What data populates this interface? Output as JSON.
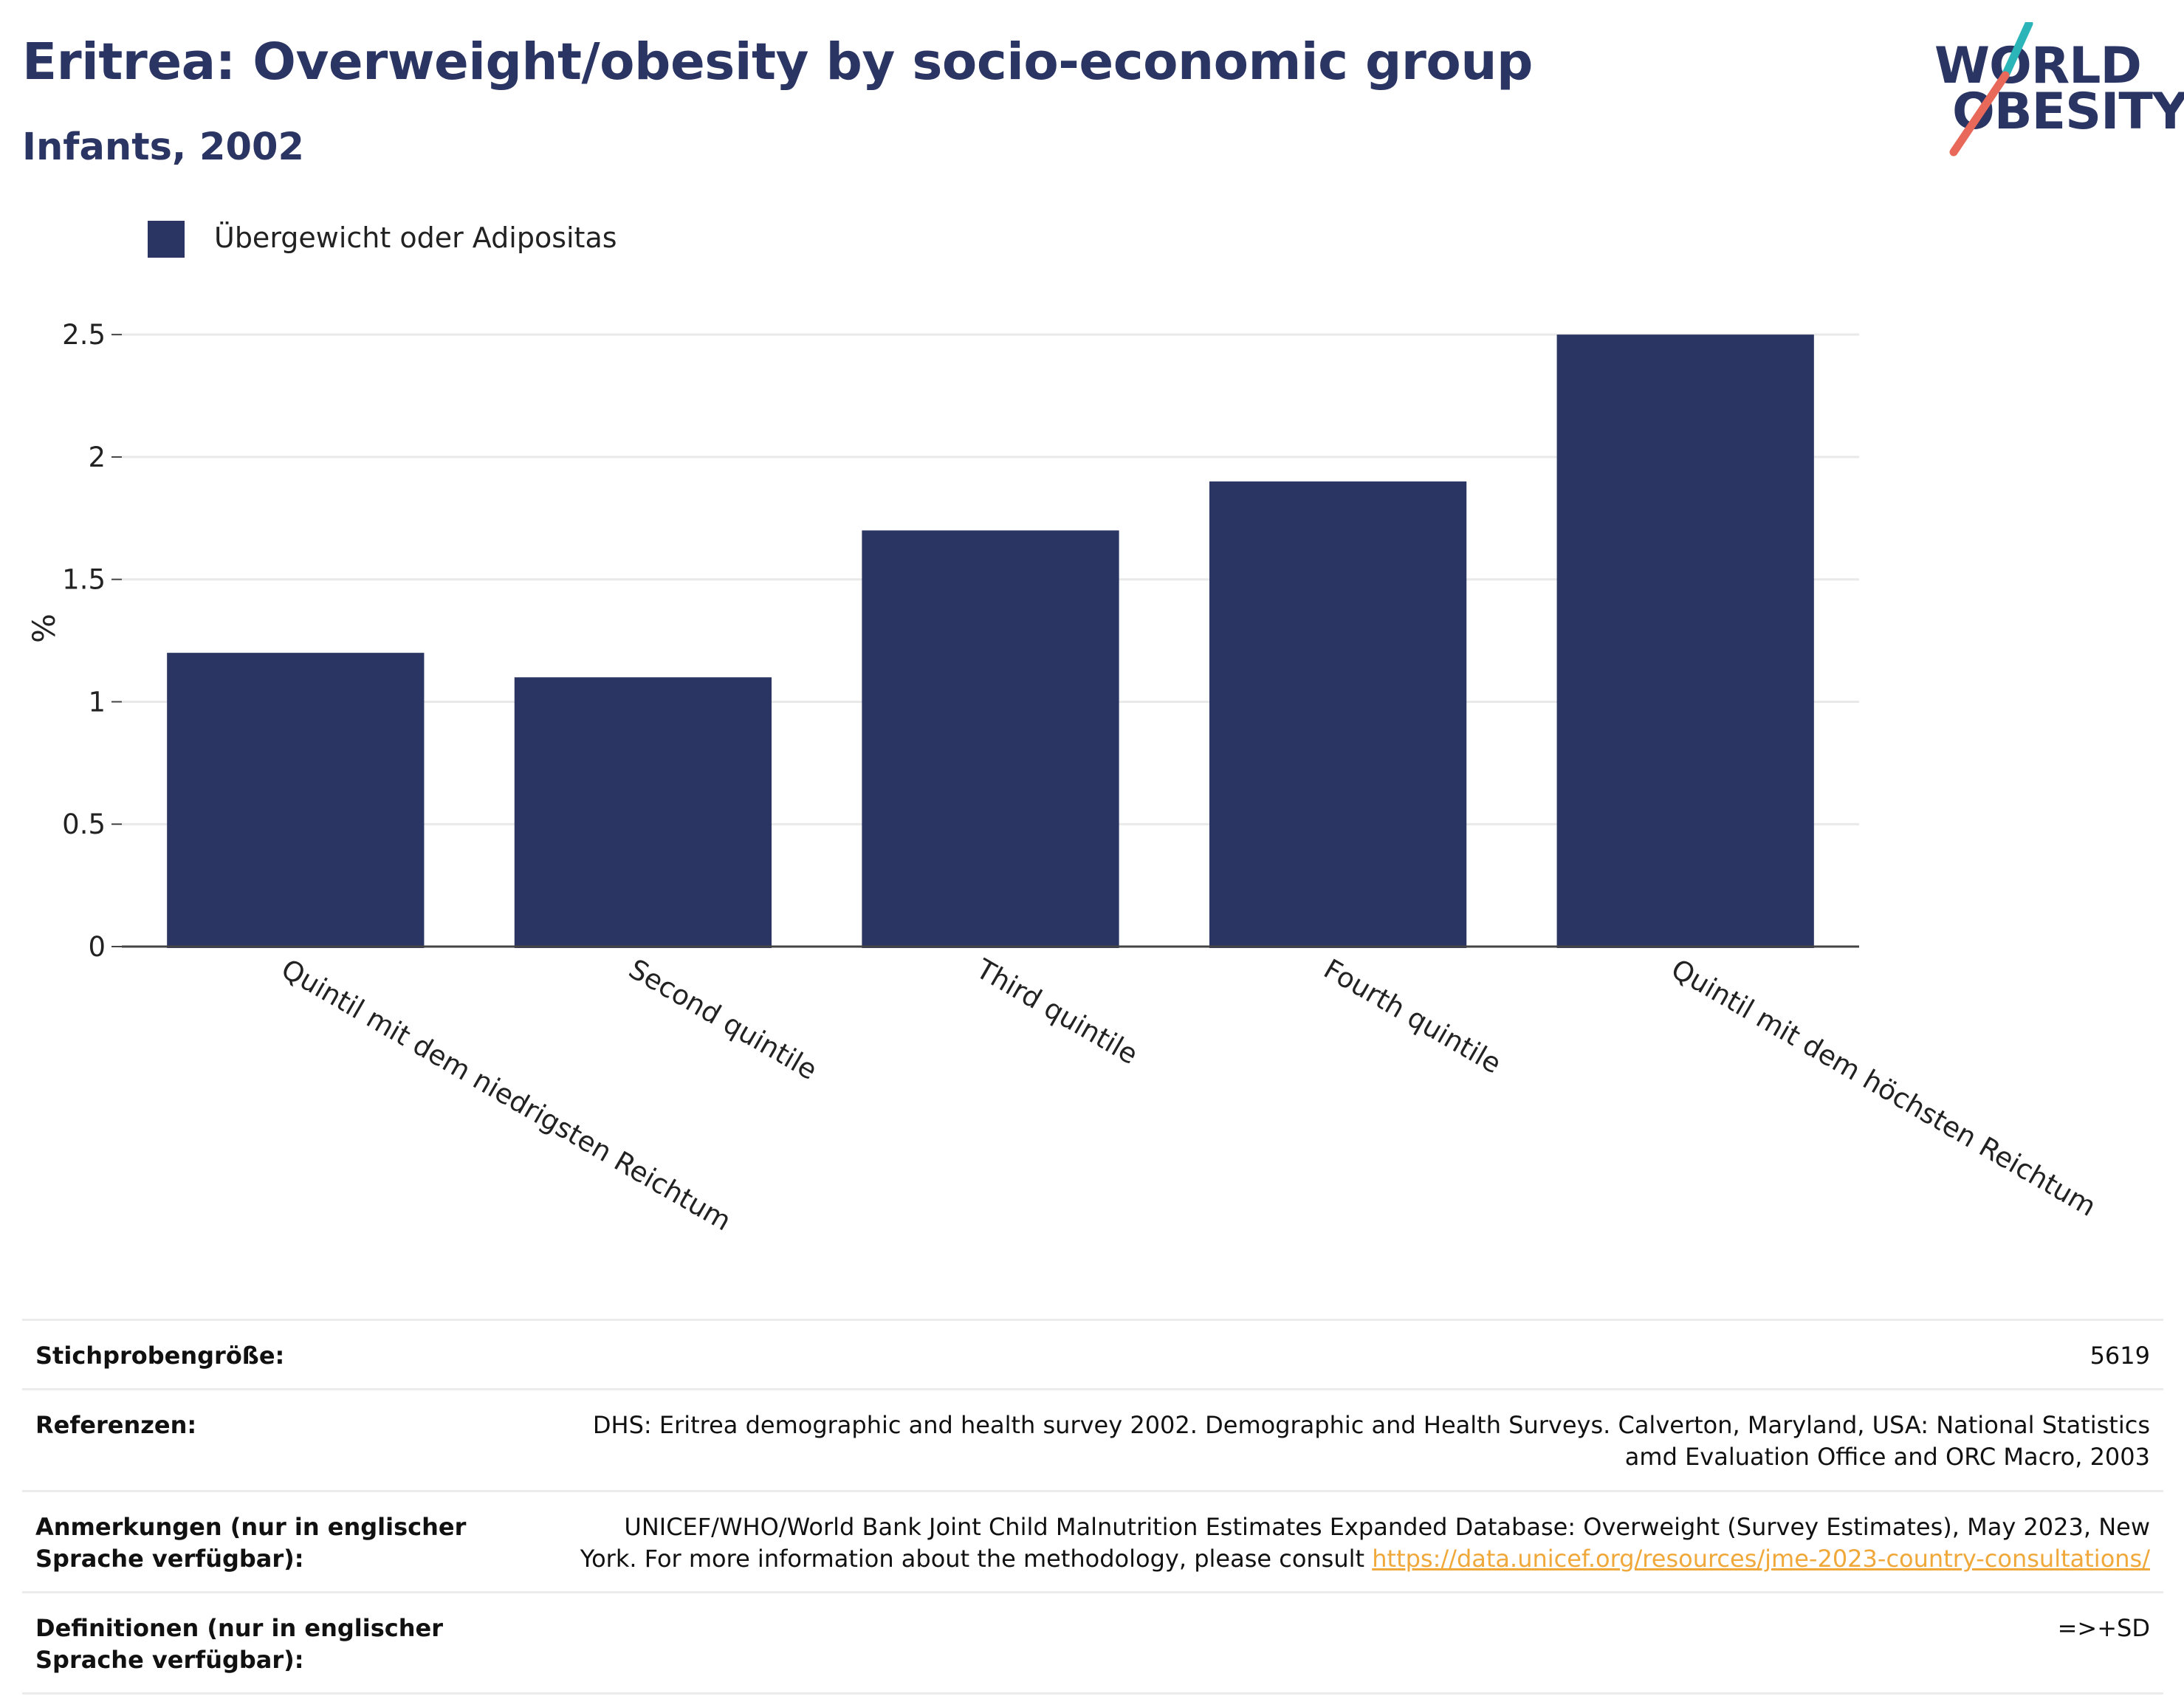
{
  "header": {
    "title": "Eritrea: Overweight/obesity by socio-economic group",
    "subtitle": "Infants, 2002"
  },
  "logo": {
    "line1": "WORLD",
    "line2": "OBESITY",
    "colors": {
      "text": "#2b3563",
      "slash_top": "#2bb5b8",
      "slash_bottom": "#e8685a"
    }
  },
  "chart_data": {
    "type": "bar",
    "title": "Eritrea: Overweight/obesity by socio-economic group",
    "subtitle": "Infants, 2002",
    "categories": [
      "Quintil mit dem niedrigsten Reichtum",
      "Second quintile",
      "Third quintile",
      "Fourth quintile",
      "Quintil mit dem höchsten Reichtum"
    ],
    "series": [
      {
        "name": "Übergewicht oder Adipositas",
        "color": "#2b3563",
        "values": [
          1.2,
          1.1,
          1.7,
          1.9,
          2.5
        ]
      }
    ],
    "xlabel": "",
    "ylabel": "%",
    "ylim": [
      0,
      2.6
    ],
    "yticks": [
      0,
      0.5,
      1,
      1.5,
      2,
      2.5
    ],
    "ytick_labels": [
      "0",
      "0.5",
      "1",
      "1.5",
      "2",
      "2.5"
    ],
    "grid": true,
    "legend_position": "top-left"
  },
  "info": {
    "sample_size_label": "Stichprobengröße:",
    "sample_size_value": "5619",
    "references_label": "Referenzen:",
    "references_value": "DHS: Eritrea demographic and health survey 2002. Demographic and Health Surveys. Calverton, Maryland, USA: National Statistics amd Evaluation Office and ORC Macro, 2003",
    "notes_label": "Anmerkungen (nur in englischer Sprache verfügbar):",
    "notes_text": "UNICEF/WHO/World Bank Joint Child Malnutrition Estimates Expanded Database: Overweight (Survey Estimates), May 2023, New York. For more information about the methodology, please consult ",
    "notes_link": "https://data.unicef.org/resources/jme-2023-country-consultations/",
    "definitions_label": "Definitionen (nur in englischer Sprache verfügbar):",
    "definitions_value": "=>+SD"
  }
}
